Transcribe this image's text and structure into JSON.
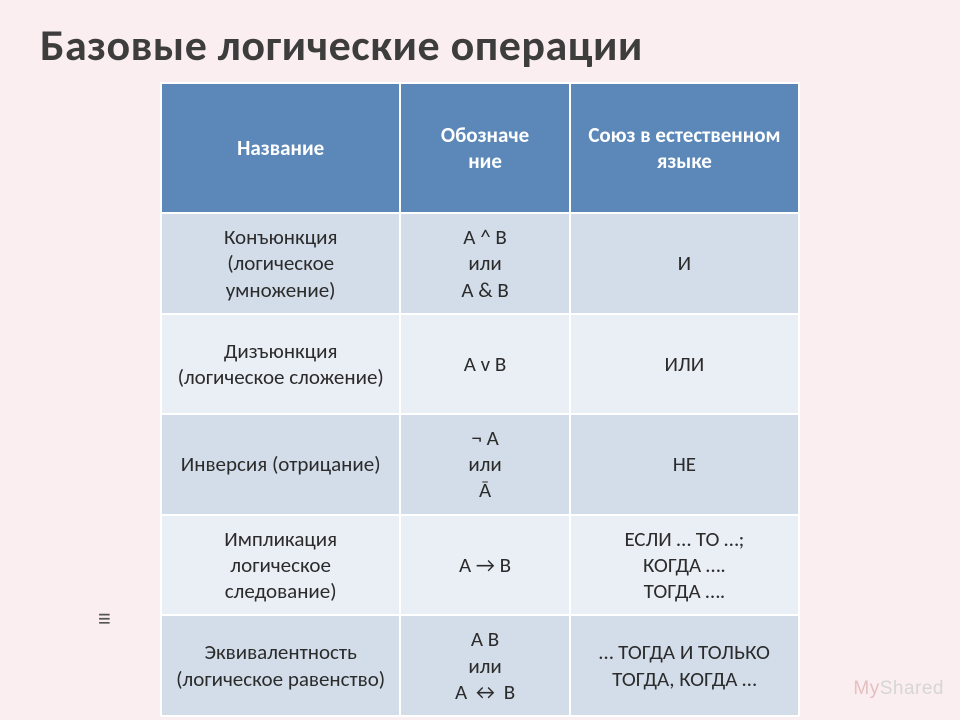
{
  "title": "Базовые логические операции",
  "columns": {
    "name": "Название",
    "symbol": "Обозначе\nние",
    "lang": "Союз в естественном языке"
  },
  "rows": [
    {
      "name": "Конъюнкция (логическое умножение)",
      "symbol": "A ^ B\nили\nA & B",
      "lang": "И"
    },
    {
      "name": "Дизъюнкция (логическое сложение)",
      "symbol": "A v B",
      "lang": "ИЛИ"
    },
    {
      "name": "Инверсия (отрицание)",
      "symbol": "¬ A\nили\nĀ",
      "lang": "НЕ"
    },
    {
      "name": "Импликация логическое следование)",
      "symbol": "A → B",
      "lang": "ЕСЛИ … ТО …;\nКОГДА ….\nТОГДА …."
    },
    {
      "name": "Эквивалентность (логическое равенство)",
      "symbol": "A     B\nили\nA ↔ B",
      "lang": "… ТОГДА И ТОЛЬКО ТОГДА, КОГДА …"
    }
  ],
  "watermark": {
    "prefix": "My",
    "suffix": "Shared"
  },
  "equiv_glyph": "≡",
  "colors": {
    "page_bg": "#fbeef1",
    "header_bg": "#5b88b8",
    "header_fg": "#ffffff",
    "row_odd_bg": "#d3dde9",
    "row_even_bg": "#eaeef5",
    "cell_border": "#ffffff",
    "title_fg": "#3d3d3d",
    "watermark_fg": "#d6d6d6",
    "watermark_prefix_fg": "#e4c0c0"
  },
  "fontsizes": {
    "title": 44,
    "cell": 21,
    "watermark": 19
  }
}
